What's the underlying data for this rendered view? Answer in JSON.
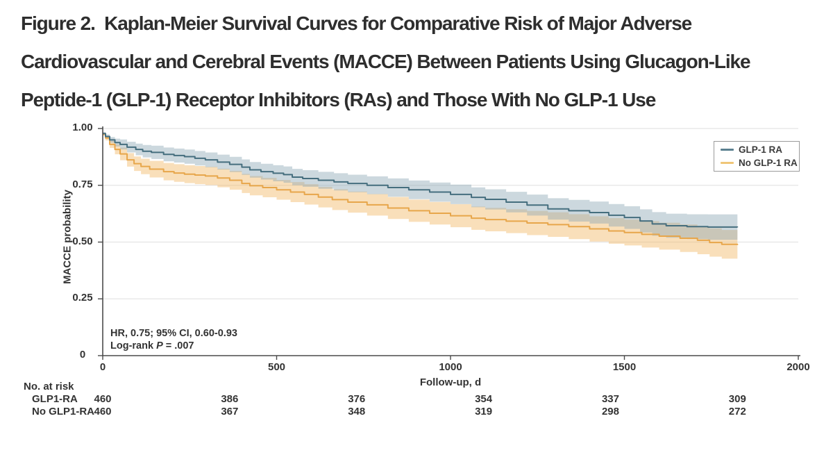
{
  "title_lines": [
    "Figure 2.  Kaplan-Meier Survival Curves for Comparative Risk of Major Adverse",
    "Cardiovascular and Cerebral Events (MACCE) Between Patients Using Glucagon-Like",
    "Peptide-1 (GLP-1) Receptor Inhibitors (RAs) and Those With No GLP-1 Use"
  ],
  "chart": {
    "y_axis_label": "MACCE probability",
    "x_axis_label": "Follow-up, d",
    "annotation_line1": "HR, 0.75; 95% CI, 0.60-0.93",
    "annotation_line2_prefix": "Log-rank ",
    "annotation_line2_italic": "P",
    "annotation_line2_suffix": " = .007"
  },
  "colors": {
    "glp1_line": "#456e7e",
    "glp1_band": "#8fa9b6",
    "no_glp1_line": "#e7a64b",
    "no_glp1_band": "#f2b766",
    "legend_glp1": "#5b8090",
    "legend_no_glp1": "#f0c678",
    "grid": "#e4e4e4",
    "axis": "#4a4a4a",
    "text": "#303030"
  },
  "chart_data": {
    "type": "line",
    "subtype": "kaplan-meier-step",
    "title": "",
    "xlabel": "Follow-up, d",
    "ylabel": "MACCE probability",
    "xlim": [
      0,
      2000
    ],
    "ylim": [
      0,
      1.0
    ],
    "x_ticks": [
      {
        "v": 0,
        "label": "0"
      },
      {
        "v": 500,
        "label": "500"
      },
      {
        "v": 1000,
        "label": "1000"
      },
      {
        "v": 1500,
        "label": "1500"
      },
      {
        "v": 2000,
        "label": "2000"
      }
    ],
    "y_ticks": [
      {
        "v": 1.0,
        "label": "1.00"
      },
      {
        "v": 0.75,
        "label": "0.75"
      },
      {
        "v": 0.5,
        "label": "0.50"
      },
      {
        "v": 0.25,
        "label": "0.25"
      },
      {
        "v": 0,
        "label": "0"
      }
    ],
    "grid": true,
    "legend_position": "top-right",
    "annotations": [
      "HR, 0.75; 95% CI, 0.60-0.93",
      "Log-rank P = .007"
    ],
    "series": [
      {
        "name": "GLP-1 RA",
        "points": [
          [
            0,
            0.978
          ],
          [
            8,
            0.965
          ],
          [
            20,
            0.95
          ],
          [
            35,
            0.938
          ],
          [
            50,
            0.93
          ],
          [
            70,
            0.918
          ],
          [
            95,
            0.908
          ],
          [
            115,
            0.9
          ],
          [
            140,
            0.895
          ],
          [
            175,
            0.886
          ],
          [
            205,
            0.881
          ],
          [
            235,
            0.876
          ],
          [
            265,
            0.869
          ],
          [
            295,
            0.862
          ],
          [
            330,
            0.852
          ],
          [
            365,
            0.842
          ],
          [
            400,
            0.83
          ],
          [
            423,
            0.818
          ],
          [
            455,
            0.81
          ],
          [
            490,
            0.803
          ],
          [
            520,
            0.797
          ],
          [
            545,
            0.786
          ],
          [
            575,
            0.78
          ],
          [
            620,
            0.772
          ],
          [
            665,
            0.765
          ],
          [
            705,
            0.758
          ],
          [
            760,
            0.75
          ],
          [
            820,
            0.74
          ],
          [
            880,
            0.73
          ],
          [
            940,
            0.72
          ],
          [
            1000,
            0.71
          ],
          [
            1060,
            0.697
          ],
          [
            1100,
            0.688
          ],
          [
            1160,
            0.676
          ],
          [
            1220,
            0.663
          ],
          [
            1280,
            0.646
          ],
          [
            1340,
            0.638
          ],
          [
            1400,
            0.63
          ],
          [
            1455,
            0.618
          ],
          [
            1500,
            0.608
          ],
          [
            1545,
            0.593
          ],
          [
            1580,
            0.58
          ],
          [
            1620,
            0.572
          ],
          [
            1680,
            0.568
          ],
          [
            1740,
            0.566
          ],
          [
            1825,
            0.565
          ]
        ],
        "ci_halfwidth": [
          [
            0,
            0.006
          ],
          [
            50,
            0.022
          ],
          [
            150,
            0.03
          ],
          [
            400,
            0.034
          ],
          [
            800,
            0.04
          ],
          [
            1200,
            0.046
          ],
          [
            1500,
            0.05
          ],
          [
            1825,
            0.058
          ]
        ]
      },
      {
        "name": "No GLP-1 RA",
        "points": [
          [
            0,
            0.975
          ],
          [
            8,
            0.958
          ],
          [
            20,
            0.93
          ],
          [
            35,
            0.908
          ],
          [
            50,
            0.888
          ],
          [
            70,
            0.862
          ],
          [
            90,
            0.845
          ],
          [
            110,
            0.833
          ],
          [
            135,
            0.821
          ],
          [
            175,
            0.81
          ],
          [
            205,
            0.804
          ],
          [
            235,
            0.799
          ],
          [
            265,
            0.795
          ],
          [
            295,
            0.791
          ],
          [
            330,
            0.782
          ],
          [
            365,
            0.772
          ],
          [
            400,
            0.758
          ],
          [
            423,
            0.748
          ],
          [
            460,
            0.74
          ],
          [
            500,
            0.73
          ],
          [
            540,
            0.72
          ],
          [
            580,
            0.71
          ],
          [
            620,
            0.698
          ],
          [
            660,
            0.687
          ],
          [
            705,
            0.676
          ],
          [
            760,
            0.664
          ],
          [
            820,
            0.65
          ],
          [
            880,
            0.638
          ],
          [
            940,
            0.627
          ],
          [
            1000,
            0.616
          ],
          [
            1060,
            0.605
          ],
          [
            1100,
            0.599
          ],
          [
            1160,
            0.592
          ],
          [
            1220,
            0.584
          ],
          [
            1280,
            0.577
          ],
          [
            1340,
            0.568
          ],
          [
            1400,
            0.558
          ],
          [
            1455,
            0.549
          ],
          [
            1500,
            0.542
          ],
          [
            1550,
            0.534
          ],
          [
            1600,
            0.526
          ],
          [
            1660,
            0.517
          ],
          [
            1710,
            0.508
          ],
          [
            1745,
            0.498
          ],
          [
            1780,
            0.49
          ],
          [
            1825,
            0.487
          ]
        ],
        "ci_halfwidth": [
          [
            0,
            0.007
          ],
          [
            50,
            0.028
          ],
          [
            150,
            0.038
          ],
          [
            400,
            0.042
          ],
          [
            800,
            0.048
          ],
          [
            1200,
            0.053
          ],
          [
            1500,
            0.057
          ],
          [
            1825,
            0.064
          ]
        ]
      }
    ]
  },
  "risk_table": {
    "heading": "No. at risk",
    "days": [
      0,
      365,
      730,
      1095,
      1460,
      1825
    ],
    "rows": [
      {
        "label": "GLP1-RA",
        "values": [
          "460",
          "386",
          "376",
          "354",
          "337",
          "309"
        ]
      },
      {
        "label": "No GLP1-RA",
        "values": [
          "460",
          "367",
          "348",
          "319",
          "298",
          "272"
        ]
      }
    ]
  }
}
